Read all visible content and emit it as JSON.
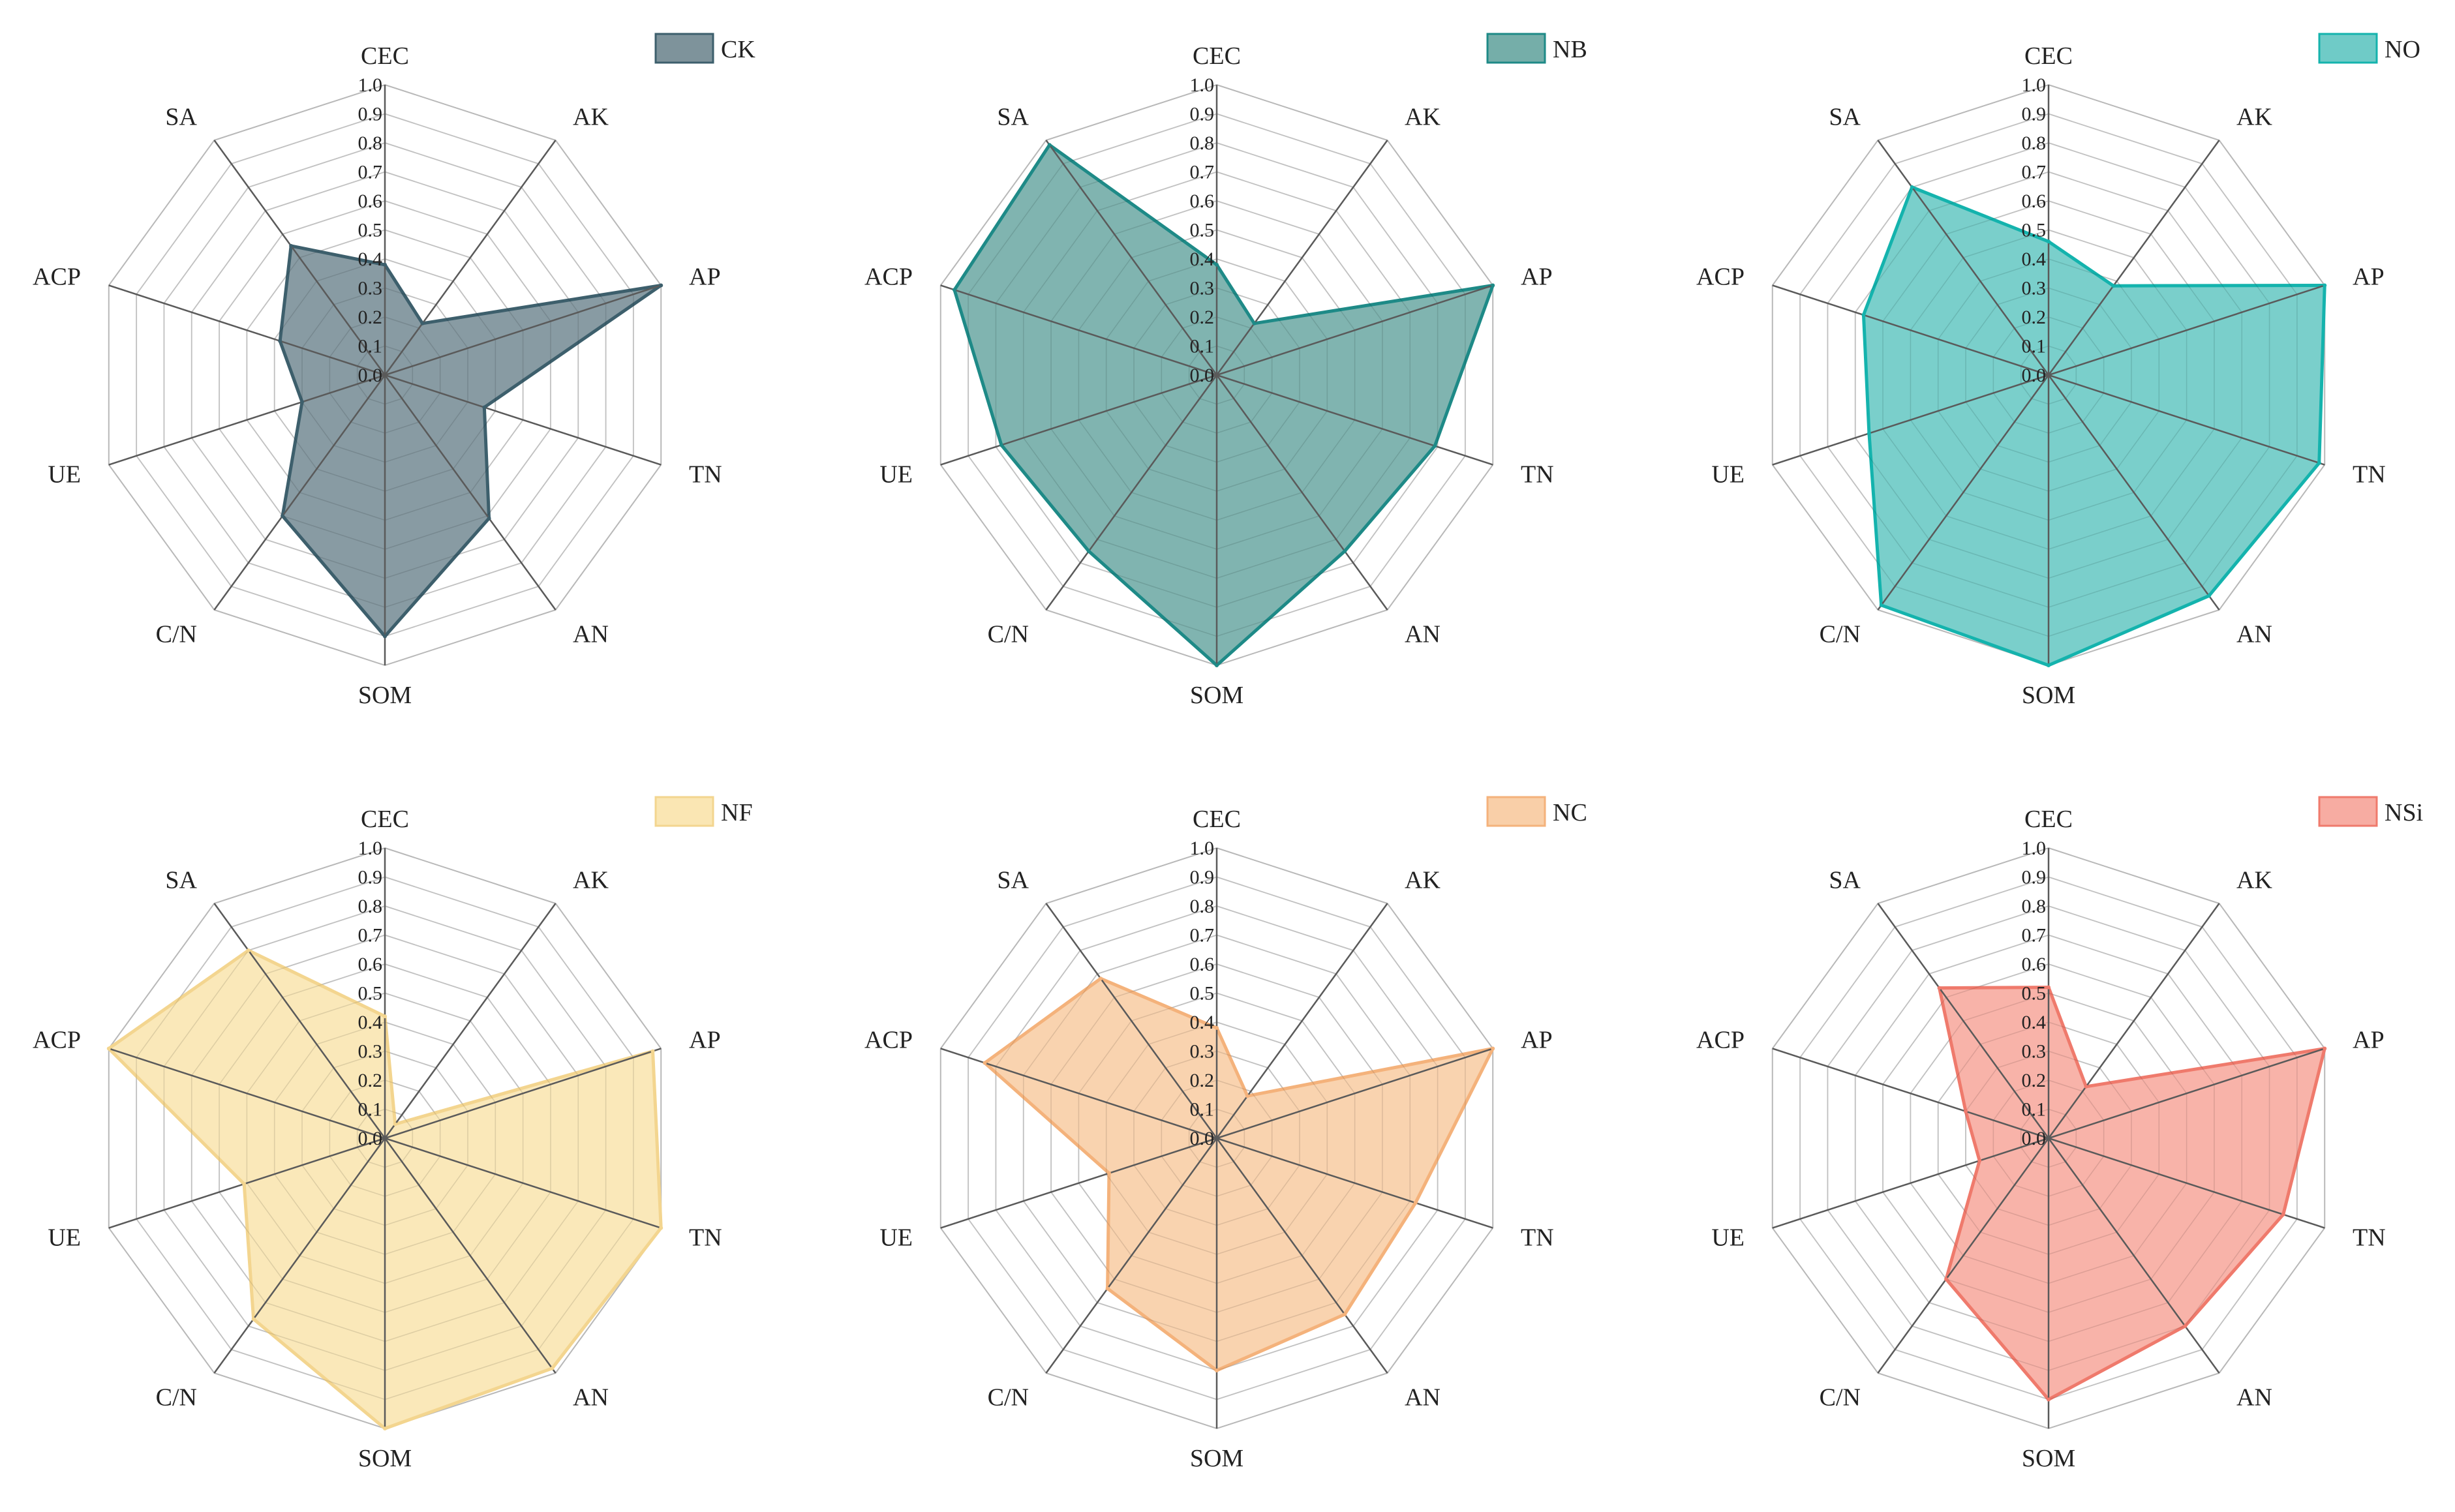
{
  "figure": {
    "title": ""
  },
  "chart_data": [
    {
      "type": "radar",
      "name": "CK",
      "legend": "CK",
      "color": "#3d5f6c",
      "fill": "#7e939b",
      "axes": [
        "CEC",
        "AK",
        "AP",
        "TN",
        "AN",
        "SOM",
        "C/N",
        "UE",
        "ACP",
        "SA"
      ],
      "ticks": [
        "0.0",
        "0.1",
        "0.2",
        "0.3",
        "0.4",
        "0.5",
        "0.6",
        "0.7",
        "0.8",
        "0.9",
        "1.0"
      ],
      "range": [
        0,
        1
      ],
      "values": [
        0.38,
        0.22,
        1.0,
        0.36,
        0.61,
        0.9,
        0.6,
        0.3,
        0.38,
        0.55
      ]
    },
    {
      "type": "radar",
      "name": "NB",
      "legend": "NB",
      "color": "#1e8a87",
      "fill": "#75aea9",
      "axes": [
        "CEC",
        "AK",
        "AP",
        "TN",
        "AN",
        "SOM",
        "C/N",
        "UE",
        "ACP",
        "SA"
      ],
      "ticks": [
        "0.0",
        "0.1",
        "0.2",
        "0.3",
        "0.4",
        "0.5",
        "0.6",
        "0.7",
        "0.8",
        "0.9",
        "1.0"
      ],
      "range": [
        0,
        1
      ],
      "values": [
        0.38,
        0.22,
        1.0,
        0.79,
        0.75,
        1.0,
        0.75,
        0.78,
        0.95,
        0.98
      ]
    },
    {
      "type": "radar",
      "name": "NO",
      "legend": "NO",
      "color": "#14b3ad",
      "fill": "#6fcbc7",
      "axes": [
        "CEC",
        "AK",
        "AP",
        "TN",
        "AN",
        "SOM",
        "C/N",
        "UE",
        "ACP",
        "SA"
      ],
      "ticks": [
        "0.0",
        "0.1",
        "0.2",
        "0.3",
        "0.4",
        "0.5",
        "0.6",
        "0.7",
        "0.8",
        "0.9",
        "1.0"
      ],
      "range": [
        0,
        1
      ],
      "values": [
        0.46,
        0.38,
        1.0,
        0.98,
        0.94,
        1.0,
        0.98,
        0.65,
        0.67,
        0.8
      ]
    },
    {
      "type": "radar",
      "name": "NF",
      "legend": "NF",
      "color": "#f3d58f",
      "fill": "#fae6b3",
      "axes": [
        "CEC",
        "AK",
        "AP",
        "TN",
        "AN",
        "SOM",
        "C/N",
        "UE",
        "ACP",
        "SA"
      ],
      "ticks": [
        "0.0",
        "0.1",
        "0.2",
        "0.3",
        "0.4",
        "0.5",
        "0.6",
        "0.7",
        "0.8",
        "0.9",
        "1.0"
      ],
      "range": [
        0,
        1
      ],
      "values": [
        0.42,
        0.06,
        0.97,
        1.0,
        0.98,
        1.0,
        0.77,
        0.51,
        1.0,
        0.8
      ]
    },
    {
      "type": "radar",
      "name": "NC",
      "legend": "NC",
      "color": "#f4b27b",
      "fill": "#f9cfa8",
      "axes": [
        "CEC",
        "AK",
        "AP",
        "TN",
        "AN",
        "SOM",
        "C/N",
        "UE",
        "ACP",
        "SA"
      ],
      "ticks": [
        "0.0",
        "0.1",
        "0.2",
        "0.3",
        "0.4",
        "0.5",
        "0.6",
        "0.7",
        "0.8",
        "0.9",
        "1.0"
      ],
      "range": [
        0,
        1
      ],
      "values": [
        0.38,
        0.18,
        1.0,
        0.72,
        0.75,
        0.8,
        0.64,
        0.39,
        0.84,
        0.68
      ]
    },
    {
      "type": "radar",
      "name": "NSi",
      "legend": "NSi",
      "color": "#ef7a6c",
      "fill": "#f7aca2",
      "axes": [
        "CEC",
        "AK",
        "AP",
        "TN",
        "AN",
        "SOM",
        "C/N",
        "UE",
        "ACP",
        "SA"
      ],
      "ticks": [
        "0.0",
        "0.1",
        "0.2",
        "0.3",
        "0.4",
        "0.5",
        "0.6",
        "0.7",
        "0.8",
        "0.9",
        "1.0"
      ],
      "range": [
        0,
        1
      ],
      "values": [
        0.52,
        0.22,
        1.0,
        0.85,
        0.8,
        0.9,
        0.6,
        0.25,
        0.3,
        0.64
      ]
    }
  ]
}
